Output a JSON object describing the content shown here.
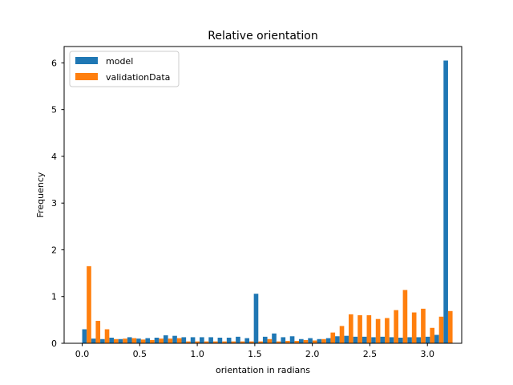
{
  "chart_data": {
    "type": "bar",
    "title": "Relative orientation",
    "xlabel": "orientation in radians",
    "ylabel": "Frequency",
    "xlim": [
      -0.157,
      3.298
    ],
    "ylim": [
      0,
      6.35
    ],
    "xticks": [
      0.0,
      0.5,
      1.0,
      1.5,
      2.0,
      2.5,
      3.0
    ],
    "xtick_labels": [
      "0.0",
      "0.5",
      "1.0",
      "1.5",
      "2.0",
      "2.5",
      "3.0"
    ],
    "yticks": [
      0,
      1,
      2,
      3,
      4,
      5,
      6
    ],
    "ytick_labels": [
      "0",
      "1",
      "2",
      "3",
      "4",
      "5",
      "6"
    ],
    "grid": false,
    "legend_position": "top-left",
    "bin_start": 0.0,
    "bin_width": 0.0785,
    "series": [
      {
        "name": "model",
        "color": "#1f77b4",
        "values": [
          0.3,
          0.1,
          0.09,
          0.12,
          0.09,
          0.13,
          0.1,
          0.11,
          0.12,
          0.17,
          0.16,
          0.13,
          0.13,
          0.13,
          0.13,
          0.12,
          0.12,
          0.14,
          0.11,
          1.06,
          0.14,
          0.21,
          0.13,
          0.15,
          0.09,
          0.11,
          0.09,
          0.11,
          0.15,
          0.16,
          0.14,
          0.14,
          0.13,
          0.14,
          0.13,
          0.12,
          0.13,
          0.13,
          0.14,
          0.18,
          6.05
        ]
      },
      {
        "name": "validationData",
        "color": "#ff7f0e",
        "values": [
          1.65,
          0.48,
          0.3,
          0.09,
          0.1,
          0.11,
          0.08,
          0.07,
          0.1,
          0.1,
          0.11,
          0.04,
          0.04,
          0.04,
          0.04,
          0.04,
          0.04,
          0.04,
          0.04,
          0.04,
          0.09,
          0.04,
          0.05,
          0.05,
          0.07,
          0.06,
          0.09,
          0.23,
          0.37,
          0.62,
          0.6,
          0.6,
          0.52,
          0.54,
          0.71,
          1.14,
          0.66,
          0.74,
          0.33,
          0.57,
          0.69
        ]
      }
    ]
  }
}
